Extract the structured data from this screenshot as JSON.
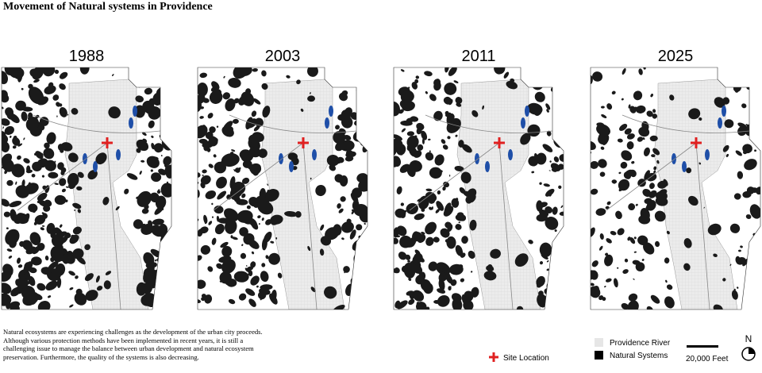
{
  "title": "Movement of Natural systems in Providence",
  "panels": [
    {
      "year": "1988"
    },
    {
      "year": "2003"
    },
    {
      "year": "2011"
    },
    {
      "year": "2025"
    }
  ],
  "caption": "Natural ecosystems are experiencing challenges as the development of the urban city proceeds. Although various protection methods have been implemented in recent years, it is still a challenging issue to manage the balance between urban development and natural ecosystem preservation. Furthermore, the quality of the systems is also decreasing.",
  "legend": {
    "site": "Site Location",
    "river": "Providence River",
    "natural": "Natural Systems"
  },
  "scale_label": "20,000 Feet",
  "north": "N"
}
